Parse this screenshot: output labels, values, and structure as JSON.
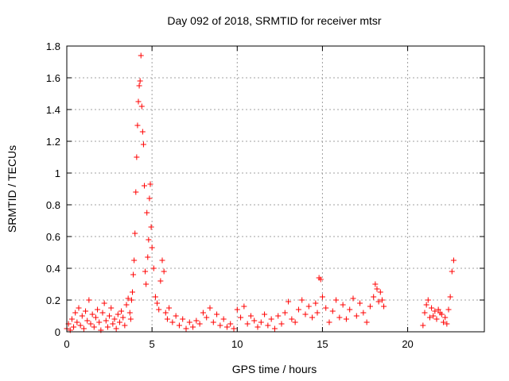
{
  "chart_data": {
    "type": "scatter",
    "title": "Day 092 of 2018, SRMTID for receiver mtsr",
    "xlabel": "GPS time / hours",
    "ylabel": "SRMTID / TECUs",
    "xlim": [
      0,
      24.5
    ],
    "ylim": [
      0,
      1.8
    ],
    "xticks": [
      0,
      5,
      10,
      15,
      20
    ],
    "yticks": [
      0,
      0.2,
      0.4,
      0.6,
      0.8,
      1,
      1.2,
      1.4,
      1.6,
      1.8
    ],
    "ytick_labels": [
      "0",
      "0.2",
      "0.4",
      "0.6",
      "0.8",
      "1",
      "1.2",
      "1.4",
      "1.6",
      "1.8"
    ],
    "grid": true,
    "legend": "none",
    "marker": "+",
    "color": "#ff0000",
    "series": [
      {
        "x": [
          0.0,
          0.1,
          0.2,
          0.3,
          0.4,
          0.5,
          0.6,
          0.7,
          0.8,
          0.9,
          1.0,
          1.1,
          1.2,
          1.3,
          1.4,
          1.5,
          1.6,
          1.7,
          1.8,
          1.9,
          2.0,
          2.1,
          2.2,
          2.3,
          2.4,
          2.5,
          2.6,
          2.7,
          2.8,
          2.9,
          3.0,
          3.1,
          3.2,
          3.3,
          3.4,
          3.5,
          3.6,
          3.7,
          3.75,
          3.8,
          3.85,
          3.9,
          3.95,
          4.0,
          4.05,
          4.1,
          4.15,
          4.2,
          4.25,
          4.3,
          4.35,
          4.4,
          4.45,
          4.5,
          4.55,
          4.6,
          4.65,
          4.7,
          4.75,
          4.8,
          4.85,
          4.9,
          4.95,
          5.0,
          5.1,
          5.2,
          5.3,
          5.4,
          5.5,
          5.6,
          5.7,
          5.8,
          5.9,
          6.0,
          6.2,
          6.4,
          6.6,
          6.8,
          7.0,
          7.2,
          7.4,
          7.6,
          7.8,
          8.0,
          8.2,
          8.4,
          8.6,
          8.8,
          9.0,
          9.2,
          9.4,
          9.6,
          9.8,
          10.0,
          10.2,
          10.4,
          10.6,
          10.8,
          11.0,
          11.2,
          11.4,
          11.6,
          11.8,
          12.0,
          12.2,
          12.4,
          12.6,
          12.8,
          13.0,
          13.2,
          13.4,
          13.6,
          13.8,
          14.0,
          14.2,
          14.4,
          14.6,
          14.7,
          14.8,
          14.9,
          15.0,
          15.2,
          15.4,
          15.6,
          15.8,
          16.0,
          16.2,
          16.4,
          16.6,
          16.8,
          17.0,
          17.2,
          17.4,
          17.6,
          17.8,
          18.0,
          18.1,
          18.2,
          18.3,
          18.4,
          18.5,
          18.6,
          20.9,
          21.0,
          21.1,
          21.2,
          21.3,
          21.4,
          21.5,
          21.6,
          21.7,
          21.8,
          21.9,
          22.0,
          22.1,
          22.2,
          22.3,
          22.4,
          22.5,
          22.6,
          22.7
        ],
        "y": [
          0.02,
          0.05,
          0.01,
          0.08,
          0.03,
          0.12,
          0.06,
          0.15,
          0.04,
          0.1,
          0.02,
          0.13,
          0.07,
          0.2,
          0.05,
          0.11,
          0.03,
          0.09,
          0.14,
          0.06,
          0.01,
          0.12,
          0.18,
          0.07,
          0.03,
          0.1,
          0.15,
          0.05,
          0.08,
          0.02,
          0.11,
          0.06,
          0.13,
          0.09,
          0.04,
          0.17,
          0.21,
          0.12,
          0.08,
          0.2,
          0.25,
          0.36,
          0.45,
          0.62,
          0.88,
          1.1,
          1.3,
          1.45,
          1.55,
          1.58,
          1.74,
          1.42,
          1.26,
          1.18,
          0.92,
          0.38,
          0.3,
          0.75,
          0.47,
          0.58,
          0.84,
          0.93,
          0.66,
          0.53,
          0.4,
          0.22,
          0.18,
          0.14,
          0.32,
          0.45,
          0.38,
          0.12,
          0.08,
          0.15,
          0.06,
          0.1,
          0.04,
          0.08,
          0.02,
          0.06,
          0.03,
          0.07,
          0.05,
          0.12,
          0.09,
          0.15,
          0.06,
          0.11,
          0.04,
          0.08,
          0.03,
          0.05,
          0.02,
          0.14,
          0.09,
          0.16,
          0.05,
          0.1,
          0.07,
          0.03,
          0.06,
          0.11,
          0.04,
          0.08,
          0.02,
          0.1,
          0.05,
          0.12,
          0.19,
          0.08,
          0.06,
          0.14,
          0.2,
          0.11,
          0.16,
          0.09,
          0.18,
          0.12,
          0.34,
          0.33,
          0.22,
          0.15,
          0.06,
          0.13,
          0.2,
          0.09,
          0.17,
          0.08,
          0.14,
          0.21,
          0.1,
          0.18,
          0.12,
          0.06,
          0.16,
          0.22,
          0.3,
          0.27,
          0.19,
          0.25,
          0.2,
          0.16,
          0.04,
          0.12,
          0.17,
          0.2,
          0.09,
          0.15,
          0.1,
          0.13,
          0.08,
          0.14,
          0.12,
          0.11,
          0.06,
          0.09,
          0.05,
          0.14,
          0.22,
          0.38,
          0.45
        ]
      }
    ]
  }
}
